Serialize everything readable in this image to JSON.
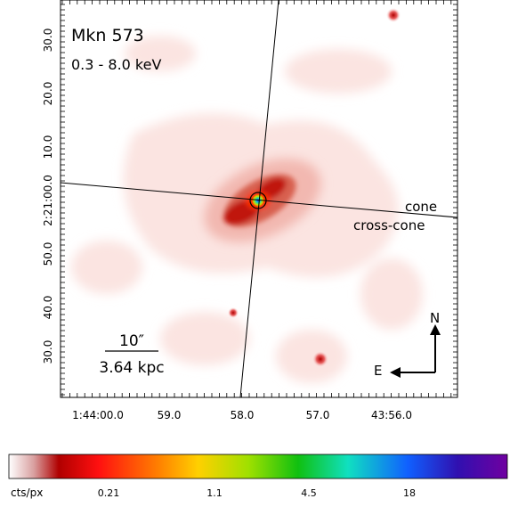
{
  "labels": {
    "object": "Mkn 573",
    "band": "0.3 - 8.0 keV",
    "cone": "cone",
    "cross_cone": "cross-cone",
    "north": "N",
    "east": "E",
    "scale_angle": "10″",
    "scale_length": "3.64 kpc"
  },
  "y_axis": {
    "ticks": [
      "30.0",
      "20.0",
      "10.0",
      "2:21:00.0",
      "50.0",
      "40.0",
      "30.0"
    ]
  },
  "x_axis": {
    "ticks": [
      "1:44:00.0",
      "59.0",
      "58.0",
      "57.0",
      "43:56.0"
    ]
  },
  "colorbar": {
    "unit": "cts/px",
    "ticks": [
      "0.21",
      "1.1",
      "4.5",
      "18"
    ]
  }
}
